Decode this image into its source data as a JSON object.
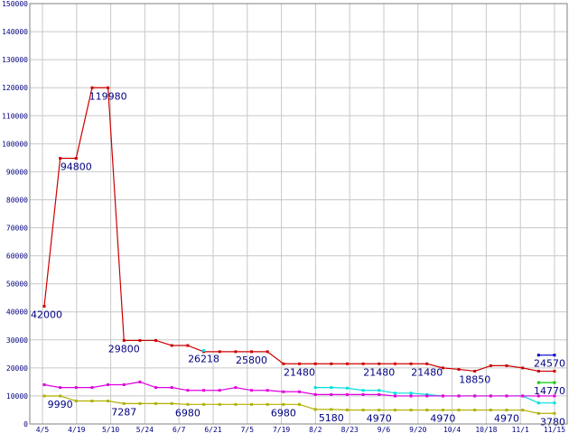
{
  "chart_data": {
    "type": "line",
    "title": "",
    "xlabel": "",
    "ylabel": "",
    "ylim": [
      0,
      150000
    ],
    "yticks": [
      "0",
      "10000",
      "20000",
      "30000",
      "40000",
      "50000",
      "60000",
      "70000",
      "80000",
      "90000",
      "100000",
      "110000",
      "120000",
      "130000",
      "140000",
      "150000"
    ],
    "x_tick_labels": [
      "4/5",
      "4/19",
      "5/10",
      "5/24",
      "6/7",
      "6/21",
      "7/5",
      "7/19",
      "8/2",
      "8/23",
      "9/6",
      "9/20",
      "10/4",
      "10/18",
      "11/1",
      "11/15"
    ],
    "grid": true,
    "legend": "none",
    "series": [
      {
        "color": "#cc0000",
        "values": [
          42000,
          94800,
          94800,
          119980,
          119980,
          29800,
          29800,
          29800,
          28000,
          28000,
          25800,
          25800,
          25800,
          25800,
          25800,
          21480,
          21480,
          21480,
          21480,
          21480,
          21480,
          21480,
          21480,
          21480,
          21480,
          20000,
          19500,
          18850,
          20800,
          20800,
          20000,
          18850,
          18850
        ]
      },
      {
        "color": "#00e0e0",
        "dashed_from_index": 12,
        "values": [
          null,
          null,
          null,
          null,
          null,
          null,
          null,
          null,
          null,
          null,
          26218,
          null,
          null,
          null,
          null,
          null,
          null,
          13000,
          13000,
          12800,
          12000,
          12000,
          11000,
          11000,
          10500,
          10000,
          10000,
          10000,
          10000,
          10000,
          10000,
          7500,
          7500
        ]
      },
      {
        "color": "#e000e0",
        "values": [
          14000,
          13000,
          13000,
          13000,
          14000,
          14000,
          15000,
          13000,
          13000,
          12000,
          12000,
          12000,
          13000,
          12000,
          12000,
          11500,
          11500,
          10500,
          10500,
          10500,
          10500,
          10500,
          10000,
          10000,
          10000,
          10000,
          10000,
          10000,
          10000,
          10000,
          10000,
          10000,
          10000
        ]
      },
      {
        "color": "#b0b000",
        "values": [
          9990,
          9990,
          8200,
          8200,
          8200,
          7287,
          7287,
          7287,
          7287,
          6980,
          6980,
          6980,
          6980,
          6980,
          6980,
          6980,
          6980,
          5180,
          5180,
          5000,
          4970,
          4970,
          4970,
          4970,
          4970,
          4970,
          4970,
          4970,
          4970,
          4970,
          4970,
          3780,
          3780
        ]
      },
      {
        "color": "#00cc00",
        "values": [
          null,
          null,
          null,
          null,
          null,
          null,
          null,
          null,
          null,
          null,
          null,
          null,
          null,
          null,
          null,
          null,
          null,
          null,
          null,
          null,
          null,
          null,
          null,
          null,
          null,
          null,
          null,
          null,
          null,
          null,
          null,
          14770,
          14770
        ]
      },
      {
        "color": "#0000cc",
        "values": [
          null,
          null,
          null,
          null,
          null,
          null,
          null,
          null,
          null,
          null,
          null,
          null,
          null,
          null,
          null,
          null,
          null,
          null,
          null,
          null,
          null,
          null,
          null,
          null,
          null,
          null,
          null,
          null,
          null,
          null,
          null,
          24570,
          24570
        ]
      }
    ],
    "annotations": [
      {
        "text": "42000",
        "series": 0,
        "i": 0,
        "pos": "below"
      },
      {
        "text": "94800",
        "series": 0,
        "i": 2,
        "pos": "below"
      },
      {
        "text": "119980",
        "series": 0,
        "i": 4,
        "pos": "below"
      },
      {
        "text": "29800",
        "series": 0,
        "i": 5,
        "pos": "below"
      },
      {
        "text": "26218",
        "series": 1,
        "i": 10,
        "pos": "below"
      },
      {
        "text": "25800",
        "series": 0,
        "i": 13,
        "pos": "below"
      },
      {
        "text": "21480",
        "series": 0,
        "i": 16,
        "pos": "below"
      },
      {
        "text": "21480",
        "series": 0,
        "i": 21,
        "pos": "below"
      },
      {
        "text": "21480",
        "series": 0,
        "i": 24,
        "pos": "below"
      },
      {
        "text": "18850",
        "series": 0,
        "i": 27,
        "pos": "below"
      },
      {
        "text": "24570",
        "series": 5,
        "i": 32,
        "pos": "below"
      },
      {
        "text": "14770",
        "series": 4,
        "i": 32,
        "pos": "below"
      },
      {
        "text": "9990",
        "series": 3,
        "i": 1,
        "pos": "below"
      },
      {
        "text": "7287",
        "series": 3,
        "i": 5,
        "pos": "below"
      },
      {
        "text": "6980",
        "series": 3,
        "i": 9,
        "pos": "below"
      },
      {
        "text": "6980",
        "series": 3,
        "i": 15,
        "pos": "below"
      },
      {
        "text": "5180",
        "series": 3,
        "i": 18,
        "pos": "below"
      },
      {
        "text": "4970",
        "series": 3,
        "i": 21,
        "pos": "below"
      },
      {
        "text": "4970",
        "series": 3,
        "i": 25,
        "pos": "below"
      },
      {
        "text": "4970",
        "series": 3,
        "i": 29,
        "pos": "below"
      },
      {
        "text": "3780",
        "series": 3,
        "i": 32,
        "pos": "below"
      }
    ]
  }
}
